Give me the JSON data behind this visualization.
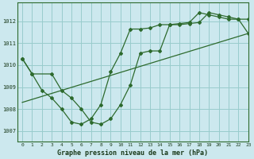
{
  "title": "Graphe pression niveau de la mer (hPa)",
  "background_color": "#cce8ee",
  "grid_color": "#99cccc",
  "line_color": "#2d6a2d",
  "xlim": [
    -0.5,
    23
  ],
  "ylim": [
    1006.5,
    1012.85
  ],
  "yticks": [
    1007,
    1008,
    1009,
    1010,
    1011,
    1012
  ],
  "xticks": [
    0,
    1,
    2,
    3,
    4,
    5,
    6,
    7,
    8,
    9,
    10,
    11,
    12,
    13,
    14,
    15,
    16,
    17,
    18,
    19,
    20,
    21,
    22,
    23
  ],
  "line1_x": [
    0,
    1,
    2,
    3,
    4,
    5,
    6,
    7,
    8,
    9,
    10,
    11,
    12,
    13,
    14,
    15,
    16,
    17,
    18,
    19,
    20,
    21,
    22,
    23
  ],
  "line1_y": [
    1010.3,
    1009.6,
    1008.85,
    1008.5,
    1008.0,
    1007.4,
    1007.3,
    1007.55,
    1008.2,
    1009.7,
    1010.55,
    1011.65,
    1011.65,
    1011.7,
    1011.85,
    1011.85,
    1011.9,
    1011.95,
    1012.4,
    1012.3,
    1012.2,
    1012.1,
    1012.1,
    1011.45
  ],
  "line2_x": [
    0,
    1,
    3,
    4,
    5,
    6,
    7,
    8,
    9,
    10,
    11,
    12,
    13,
    14,
    15,
    16,
    17,
    18,
    19,
    20,
    21,
    22,
    23
  ],
  "line2_y": [
    1010.3,
    1009.6,
    1009.6,
    1008.85,
    1008.5,
    1008.0,
    1007.4,
    1007.3,
    1007.55,
    1008.2,
    1009.1,
    1010.55,
    1010.65,
    1010.65,
    1011.85,
    1011.85,
    1011.9,
    1011.95,
    1012.4,
    1012.3,
    1012.2,
    1012.1,
    1012.1
  ],
  "trend_x": [
    0,
    23
  ],
  "trend_y": [
    1008.3,
    1011.45
  ]
}
